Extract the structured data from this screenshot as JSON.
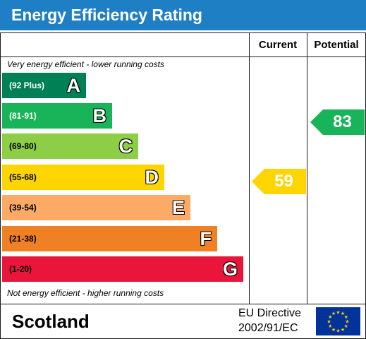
{
  "header": {
    "title": "Energy Efficiency Rating"
  },
  "columns": {
    "current": "Current",
    "potential": "Potential"
  },
  "notes": {
    "top": "Very energy efficient - lower running costs",
    "bottom": "Not energy efficient - higher running costs"
  },
  "bands": [
    {
      "letter": "A",
      "range": "(92 Plus)",
      "color": "#008054",
      "range_color": "#ffffff"
    },
    {
      "letter": "B",
      "range": "(81-91)",
      "color": "#19b459",
      "range_color": "#ffffff"
    },
    {
      "letter": "C",
      "range": "(69-80)",
      "color": "#8dce46",
      "range_color": "#000000"
    },
    {
      "letter": "D",
      "range": "(55-68)",
      "color": "#ffd500",
      "range_color": "#000000"
    },
    {
      "letter": "E",
      "range": "(39-54)",
      "color": "#fcaa65",
      "range_color": "#000000"
    },
    {
      "letter": "F",
      "range": "(21-38)",
      "color": "#ef8023",
      "range_color": "#000000"
    },
    {
      "letter": "G",
      "range": "(1-20)",
      "color": "#e9153b",
      "range_color": "#000000"
    }
  ],
  "ratings": {
    "current": {
      "value": "59",
      "band": "D",
      "color": "#ffd500"
    },
    "potential": {
      "value": "83",
      "band": "B",
      "color": "#19b459"
    }
  },
  "footer": {
    "country": "Scotland",
    "directive_line1": "EU Directive",
    "directive_line2": "2002/91/EC",
    "flag_color": "#003399",
    "star_color": "#ffcc00"
  }
}
